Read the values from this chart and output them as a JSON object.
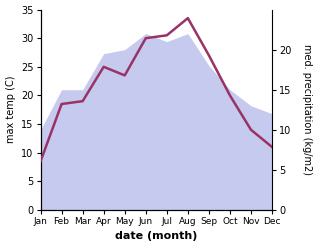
{
  "months": [
    1,
    2,
    3,
    4,
    5,
    6,
    7,
    8,
    9,
    10,
    11,
    12
  ],
  "month_labels": [
    "Jan",
    "Feb",
    "Mar",
    "Apr",
    "May",
    "Jun",
    "Jul",
    "Aug",
    "Sep",
    "Oct",
    "Nov",
    "Dec"
  ],
  "temp": [
    8.5,
    18.5,
    19.0,
    25.0,
    23.5,
    30.0,
    30.5,
    33.5,
    27.0,
    20.0,
    14.0,
    11.0
  ],
  "precip": [
    10.0,
    15.0,
    15.0,
    19.5,
    20.0,
    22.0,
    21.0,
    22.0,
    18.0,
    15.0,
    13.0,
    12.0
  ],
  "temp_color": "#993366",
  "precip_color_fill": "#c5caee",
  "temp_ylim": [
    0,
    35
  ],
  "precip_ylim": [
    0,
    25
  ],
  "temp_yticks": [
    0,
    5,
    10,
    15,
    20,
    25,
    30,
    35
  ],
  "precip_yticks": [
    0,
    5,
    10,
    15,
    20
  ],
  "precip_yticklabels": [
    "0",
    "5",
    "10",
    "15",
    "20"
  ],
  "ylabel_left": "max temp (C)",
  "ylabel_right": "med. precipitation (kg/m2)",
  "xlabel": "date (month)",
  "bg_color": "#ffffff",
  "line_width": 1.8,
  "title": ""
}
